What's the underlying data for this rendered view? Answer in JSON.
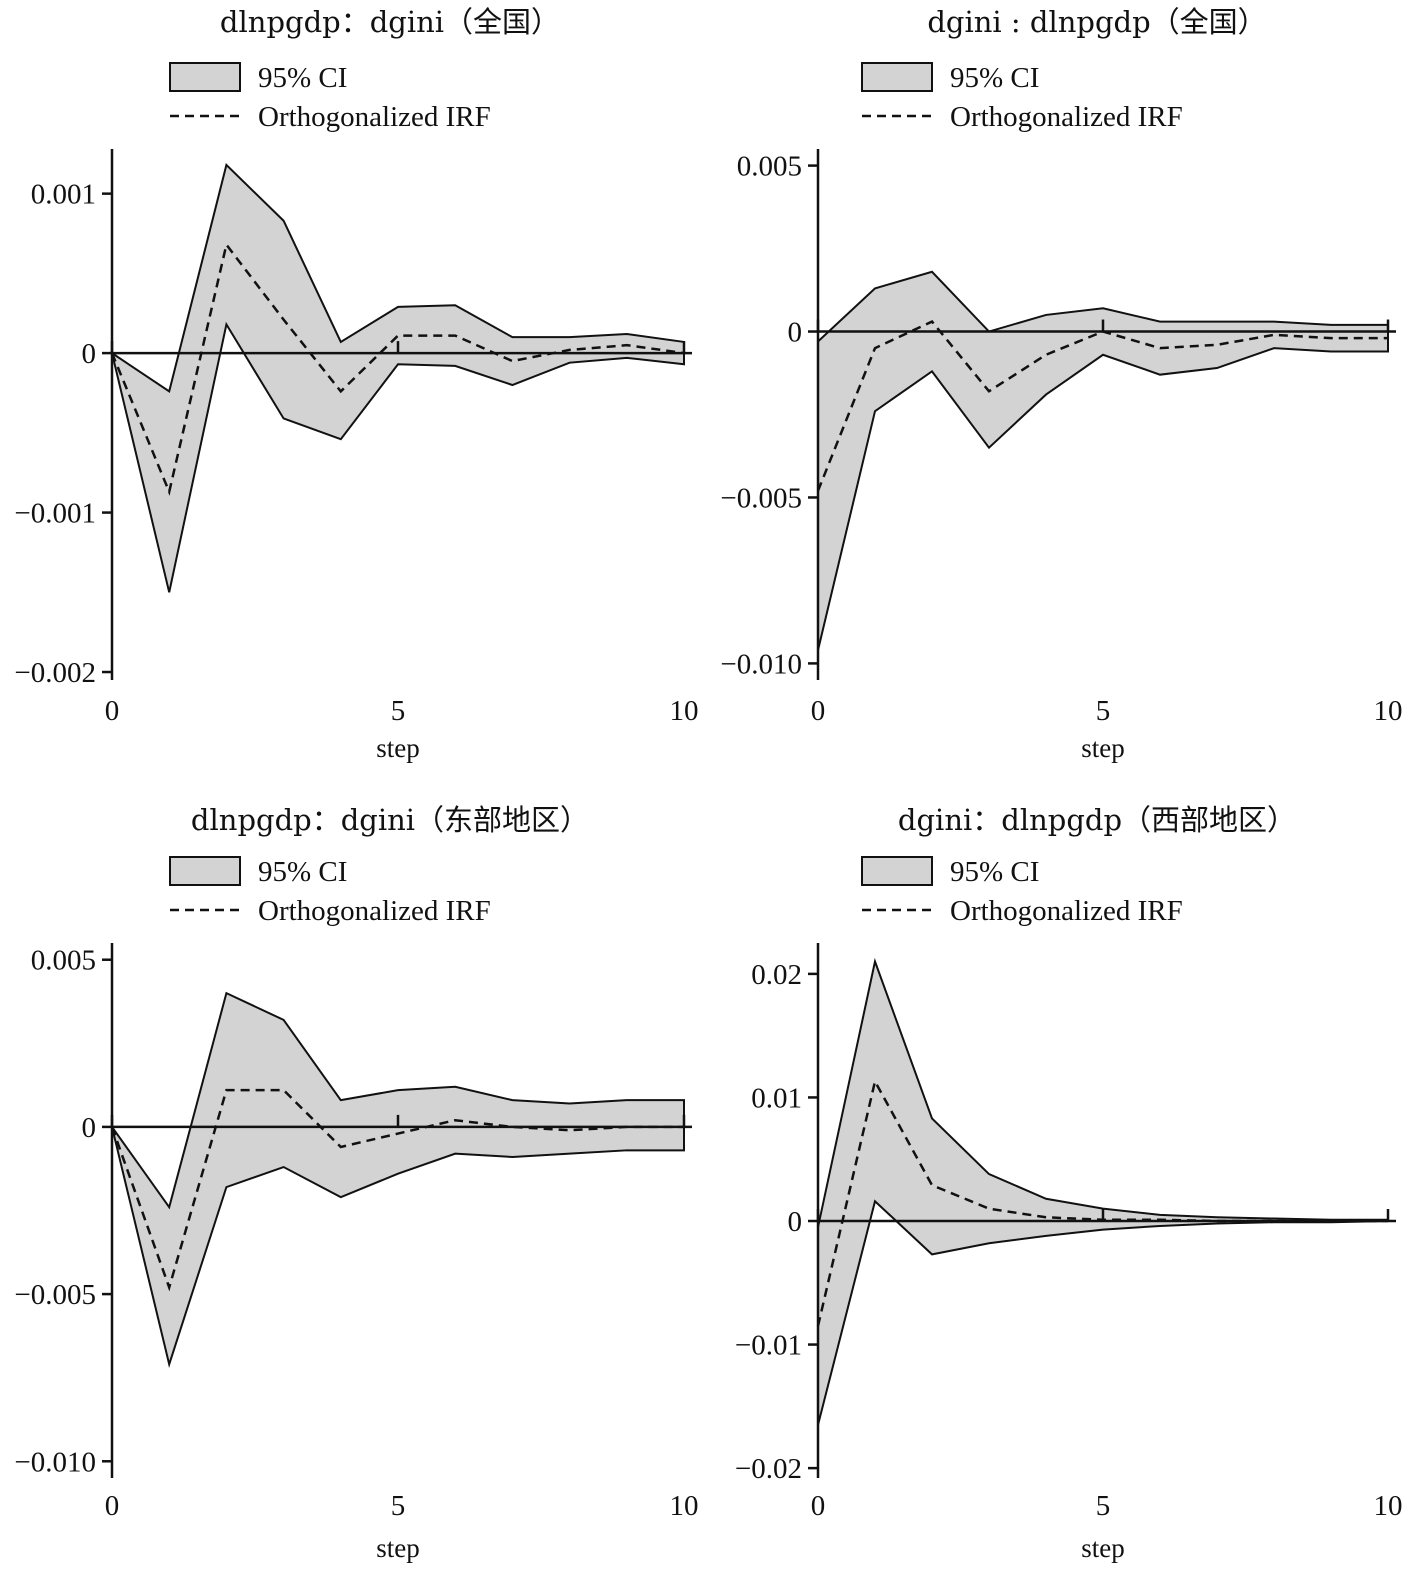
{
  "chart_data": [
    {
      "type": "line",
      "title": "dlnpgdp：dgini（全国）",
      "xlabel": "step",
      "legend": [
        "95% CI",
        "Orthogonalized IRF"
      ],
      "x": [
        0,
        1,
        2,
        3,
        4,
        5,
        6,
        7,
        8,
        9,
        10
      ],
      "xticks": [
        "0",
        "5",
        "10"
      ],
      "xtick_values": [
        0,
        5,
        10
      ],
      "yticks": [
        "0.001",
        "0",
        "−0.001",
        "−0.002"
      ],
      "ytick_values": [
        0.001,
        0,
        -0.001,
        -0.002
      ],
      "ylim": [
        -0.00205,
        0.00128
      ],
      "series": [
        {
          "name": "95% CI",
          "kind": "band",
          "upper": [
            0,
            -0.00024,
            0.00118,
            0.00083,
            7e-05,
            0.00029,
            0.0003,
            0.0001,
            0.0001,
            0.00012,
            7e-05
          ],
          "lower": [
            0,
            -0.0015,
            0.00018,
            -0.00041,
            -0.00054,
            -7e-05,
            -8e-05,
            -0.0002,
            -6e-05,
            -3e-05,
            -7e-05
          ]
        },
        {
          "name": "Orthogonalized IRF",
          "kind": "line",
          "values": [
            0,
            -0.00087,
            0.00068,
            0.00021,
            -0.00024,
            0.00011,
            0.00011,
            -5e-05,
            2e-05,
            5e-05,
            0.0
          ]
        }
      ]
    },
    {
      "type": "line",
      "title": "dgini : dlnpgdp（全国）",
      "xlabel": "step",
      "legend": [
        "95% CI",
        "Orthogonalized IRF"
      ],
      "x": [
        0,
        1,
        2,
        3,
        4,
        5,
        6,
        7,
        8,
        9,
        10
      ],
      "xticks": [
        "0",
        "5",
        "10"
      ],
      "xtick_values": [
        0,
        5,
        10
      ],
      "yticks": [
        "0.005",
        "0",
        "−0.005",
        "−0.010"
      ],
      "ytick_values": [
        0.005,
        0,
        -0.005,
        -0.01
      ],
      "ylim": [
        -0.0105,
        0.0055
      ],
      "series": [
        {
          "name": "95% CI",
          "kind": "band",
          "upper": [
            -0.0003,
            0.0013,
            0.0018,
            0.0,
            0.0005,
            0.0007,
            0.0003,
            0.0003,
            0.0003,
            0.0002,
            0.0002
          ],
          "lower": [
            -0.0096,
            -0.0024,
            -0.0012,
            -0.0035,
            -0.0019,
            -0.0007,
            -0.0013,
            -0.0011,
            -0.0005,
            -0.0006,
            -0.0006
          ]
        },
        {
          "name": "Orthogonalized IRF",
          "kind": "line",
          "values": [
            -0.0048,
            -0.0005,
            0.0003,
            -0.0018,
            -0.0007,
            0.0,
            -0.0005,
            -0.0004,
            -0.0001,
            -0.0002,
            -0.0002
          ]
        }
      ]
    },
    {
      "type": "line",
      "title": "dlnpgdp：dgini（东部地区）",
      "xlabel": "step",
      "legend": [
        "95% CI",
        "Orthogonalized IRF"
      ],
      "x": [
        0,
        1,
        2,
        3,
        4,
        5,
        6,
        7,
        8,
        9,
        10
      ],
      "xticks": [
        "0",
        "5",
        "10"
      ],
      "xtick_values": [
        0,
        5,
        10
      ],
      "yticks": [
        "0.005",
        "0",
        "−0.005",
        "−0.010"
      ],
      "ytick_values": [
        0.005,
        0,
        -0.005,
        -0.01
      ],
      "ylim": [
        -0.0105,
        0.0055
      ],
      "series": [
        {
          "name": "95% CI",
          "kind": "band",
          "upper": [
            0,
            -0.0024,
            0.004,
            0.0032,
            0.0008,
            0.0011,
            0.0012,
            0.0008,
            0.0007,
            0.0008,
            0.0008
          ],
          "lower": [
            0,
            -0.0071,
            -0.0018,
            -0.0012,
            -0.0021,
            -0.0014,
            -0.0008,
            -0.0009,
            -0.0008,
            -0.0007,
            -0.0007
          ]
        },
        {
          "name": "Orthogonalized IRF",
          "kind": "line",
          "values": [
            0,
            -0.0048,
            0.0011,
            0.0011,
            -0.0006,
            -0.0002,
            0.0002,
            0.0,
            -0.0001,
            0.0,
            0.0
          ]
        }
      ]
    },
    {
      "type": "line",
      "title": "dgini：dlnpgdp（西部地区）",
      "xlabel": "step",
      "legend": [
        "95% CI",
        "Orthogonalized IRF"
      ],
      "x": [
        0,
        1,
        2,
        3,
        4,
        5,
        6,
        7,
        8,
        9,
        10
      ],
      "xticks": [
        "0",
        "5",
        "10"
      ],
      "xtick_values": [
        0,
        5,
        10
      ],
      "yticks": [
        "0.02",
        "0.01",
        "0",
        "−0.01",
        "−0.02"
      ],
      "ytick_values": [
        0.02,
        0.01,
        0,
        -0.01,
        -0.02
      ],
      "ylim": [
        -0.0208,
        0.0225
      ],
      "series": [
        {
          "name": "95% CI",
          "kind": "band",
          "upper": [
            -0.0005,
            0.021,
            0.0083,
            0.0038,
            0.0018,
            0.001,
            0.0005,
            0.0003,
            0.0002,
            0.0001,
            0.0001
          ],
          "lower": [
            -0.0165,
            0.0016,
            -0.0027,
            -0.0018,
            -0.0012,
            -0.0007,
            -0.0004,
            -0.0002,
            -0.0001,
            -0.0001,
            0.0
          ]
        },
        {
          "name": "Orthogonalized IRF",
          "kind": "line",
          "values": [
            -0.0085,
            0.0113,
            0.0029,
            0.001,
            0.0003,
            0.0001,
            0.0001,
            0.0,
            0.0,
            0.0,
            0.0
          ]
        }
      ]
    }
  ]
}
